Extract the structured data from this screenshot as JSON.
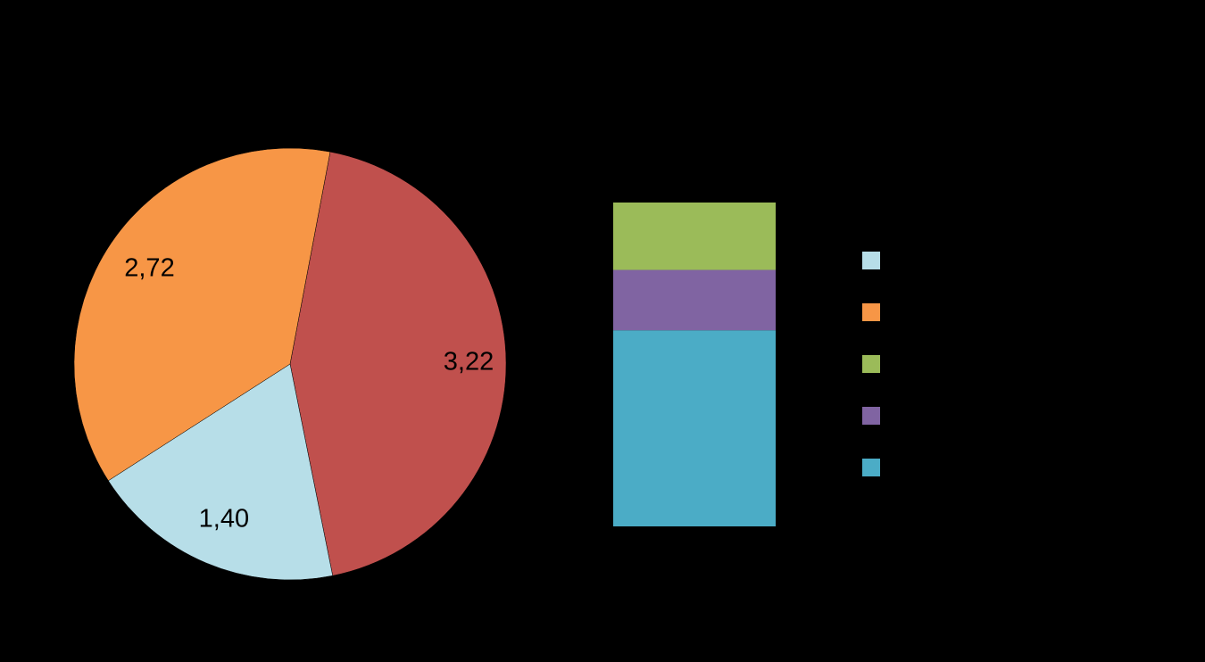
{
  "chart_data": {
    "type": "pie_of_bar",
    "categories": [
      null,
      null,
      null,
      null,
      null
    ],
    "values": [
      1.4,
      2.72,
      0.67,
      0.6,
      1.95
    ],
    "value_labels": [
      "1,40",
      "2,72",
      null,
      null,
      null
    ],
    "colors": [
      "#b7dee8",
      "#f79646",
      "#9bbb59",
      "#8064a2",
      "#4bacc6"
    ],
    "other": {
      "value": 3.22,
      "value_label": "3,22",
      "color": "#c0504d"
    }
  }
}
